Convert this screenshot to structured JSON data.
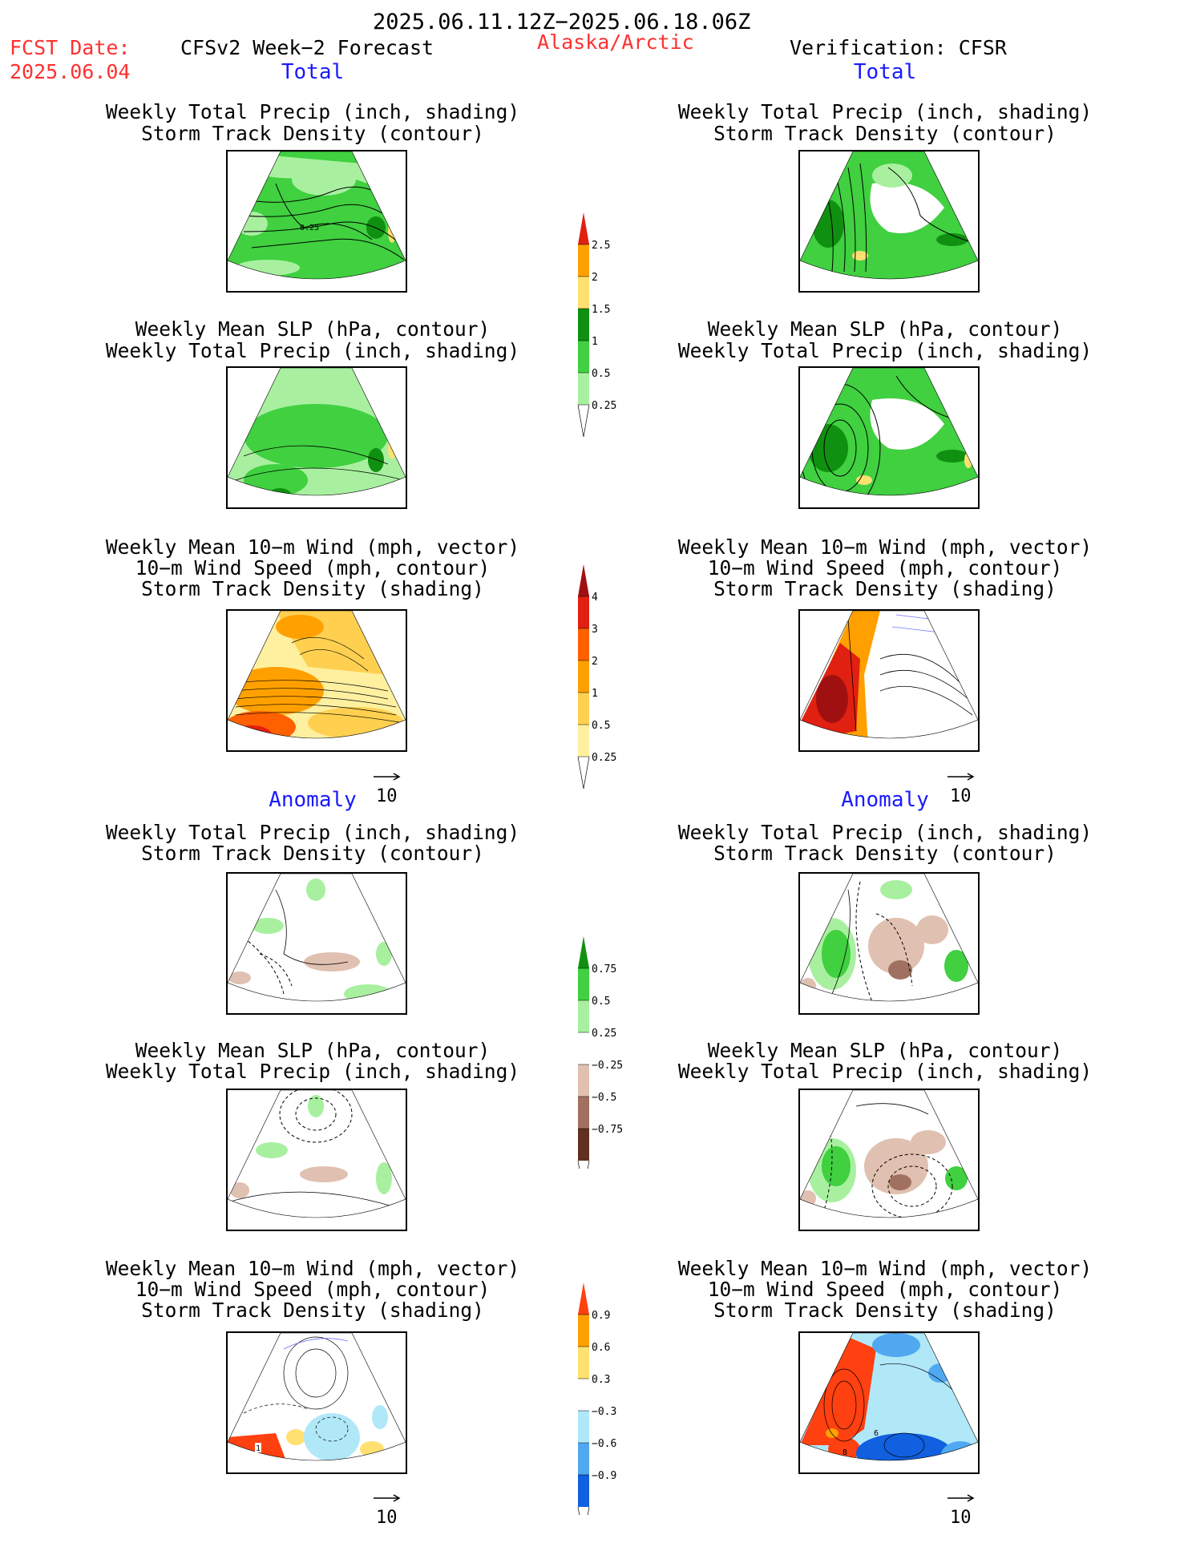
{
  "header": {
    "period": "2025.06.11.12Z−2025.06.18.06Z",
    "fcst_label": "FCST Date:",
    "fcst_date": "2025.06.04",
    "model": "CFSv2 Week−2 Forecast",
    "region": "Alaska/Arctic",
    "verification": "Verification: CFSR"
  },
  "sections": {
    "total": "Total",
    "anomaly": "Anomaly"
  },
  "panel_titles": {
    "precip_storm": [
      "Weekly Total Precip (inch, shading)",
      "Storm Track Density (contour)"
    ],
    "slp_precip": [
      "Weekly Mean SLP (hPa, contour)",
      "Weekly Total Precip (inch, shading)"
    ],
    "wind_storm": [
      "Weekly Mean 10−m Wind (mph, vector)",
      "10−m Wind Speed (mph, contour)",
      "Storm Track Density (shading)"
    ]
  },
  "vector_ref": "10",
  "contour_labels": {
    "total_precip_left": "0.25",
    "anom_wind_left": "1",
    "anom_wind_right_a": "6",
    "anom_wind_right_b": "8"
  },
  "colorbars": {
    "precip_total": {
      "labels": [
        "2.5",
        "2",
        "1.5",
        "1",
        "0.5",
        "0.25"
      ],
      "colors": [
        "#e02010",
        "#ffa000",
        "#ffe070",
        "#109010",
        "#40d040",
        "#a8f0a0"
      ]
    },
    "storm_total": {
      "labels": [
        "4",
        "3",
        "2",
        "1",
        "0.5",
        "0.25"
      ],
      "colors": [
        "#a01010",
        "#e02010",
        "#ff6000",
        "#ffa000",
        "#ffd050",
        "#fff0a0"
      ]
    },
    "precip_anom": {
      "labels": [
        "0.75",
        "0.5",
        "0.25",
        "−0.25",
        "−0.5",
        "−0.75"
      ],
      "colors": [
        "#109010",
        "#40d040",
        "#a8f0a0",
        "#ffffff",
        "#e0c0b0",
        "#a07060",
        "#603020"
      ]
    },
    "storm_anom": {
      "labels": [
        "0.9",
        "0.6",
        "0.3",
        "−0.3",
        "−0.6",
        "−0.9"
      ],
      "colors": [
        "#ff4010",
        "#ffa000",
        "#ffe070",
        "#ffffff",
        "#b0e8f8",
        "#50a8f0",
        "#1060e0"
      ]
    }
  },
  "colors": {
    "header_red": "#ff3030",
    "section_blue": "#1a1aff",
    "vector_purple": "#7070ff"
  }
}
